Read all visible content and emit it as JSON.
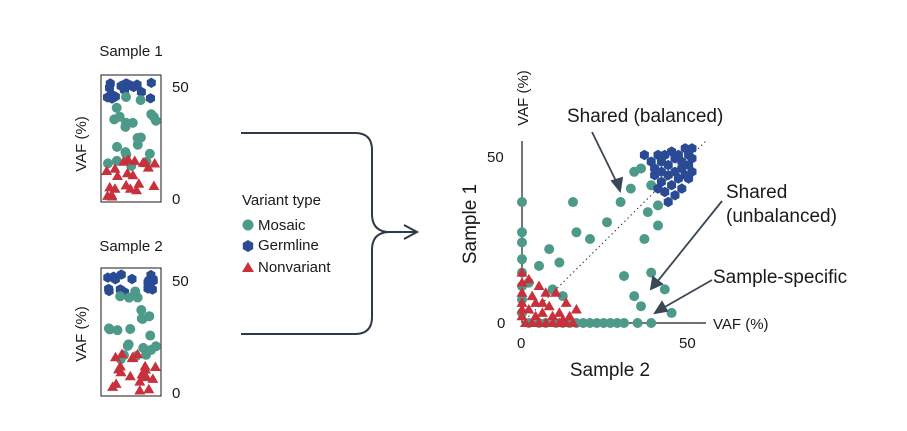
{
  "colors": {
    "mosaic": "#4e9a8a",
    "germline": "#2a4b94",
    "nonvariant": "#c8303c",
    "ink": "#1a1a1a"
  },
  "sample1": {
    "title": "Sample 1",
    "ylabel": "VAF (%)",
    "tick_top": "50",
    "tick_bottom": "0"
  },
  "sample2": {
    "title": "Sample 2",
    "ylabel": "VAF (%)",
    "tick_top": "50",
    "tick_bottom": "0"
  },
  "legend": {
    "title": "Variant type",
    "items": [
      {
        "label": "Mosaic",
        "shape": "circle",
        "type": "mosaic"
      },
      {
        "label": "Germline",
        "shape": "hexagon",
        "type": "germline"
      },
      {
        "label": "Nonvariant",
        "shape": "triangle",
        "type": "nonvariant"
      }
    ]
  },
  "scatter": {
    "ylabel": "Sample 1",
    "xlabel": "Sample 2",
    "y_axis_unit": "VAF (%)",
    "x_axis_unit": "VAF (%)",
    "y_tick_50": "50",
    "y_tick_0": "0",
    "x_tick_0": "0",
    "x_tick_50": "50"
  },
  "annotations": {
    "shared_balanced": "Shared (balanced)",
    "shared_unbalanced_line1": "Shared",
    "shared_unbalanced_line2": "(unbalanced)",
    "sample_specific": "Sample-specific"
  },
  "chart_data": {
    "type": "scatter",
    "xlabel": "Sample 2",
    "ylabel": "Sample 1",
    "xlim": [
      0,
      50
    ],
    "ylim": [
      0,
      50
    ],
    "series": [
      {
        "type": "mosaic",
        "points": [
          [
            0,
            36
          ],
          [
            0,
            27
          ],
          [
            0,
            24
          ],
          [
            0,
            19
          ],
          [
            0,
            15
          ],
          [
            0,
            11
          ],
          [
            0,
            7
          ],
          [
            0,
            3
          ],
          [
            8,
            22
          ],
          [
            5,
            17
          ],
          [
            2,
            12
          ],
          [
            11,
            18
          ],
          [
            9,
            10
          ],
          [
            16,
            27
          ],
          [
            12,
            8
          ],
          [
            15,
            36
          ],
          [
            20,
            25
          ],
          [
            25,
            30
          ],
          [
            29,
            36
          ],
          [
            30,
            14
          ],
          [
            32,
            40
          ],
          [
            35,
            46
          ],
          [
            36,
            25
          ],
          [
            40,
            29
          ],
          [
            38,
            41
          ],
          [
            33,
            45
          ],
          [
            37,
            33
          ],
          [
            40,
            35
          ],
          [
            33,
            8
          ],
          [
            42,
            10
          ],
          [
            38,
            15
          ],
          [
            35,
            5
          ],
          [
            2,
            0
          ],
          [
            5,
            0
          ],
          [
            7,
            0
          ],
          [
            10,
            0
          ],
          [
            12,
            0
          ],
          [
            14,
            0
          ],
          [
            16,
            0
          ],
          [
            18,
            0
          ],
          [
            20,
            0
          ],
          [
            22,
            0
          ],
          [
            24,
            0
          ],
          [
            26,
            0
          ],
          [
            28,
            0
          ],
          [
            30,
            0
          ],
          [
            34,
            0
          ],
          [
            38,
            0
          ],
          [
            44,
            3
          ]
        ]
      },
      {
        "type": "germline",
        "points": [
          [
            39,
            46
          ],
          [
            41,
            48
          ],
          [
            43,
            47
          ],
          [
            45,
            49
          ],
          [
            47,
            48
          ],
          [
            49,
            50
          ],
          [
            40,
            50
          ],
          [
            42,
            50
          ],
          [
            44,
            51
          ],
          [
            46,
            50
          ],
          [
            48,
            52
          ],
          [
            50,
            49
          ],
          [
            39,
            44
          ],
          [
            41,
            42
          ],
          [
            43,
            44
          ],
          [
            45,
            45
          ],
          [
            47,
            46
          ],
          [
            49,
            47
          ],
          [
            40,
            40
          ],
          [
            42,
            39
          ],
          [
            44,
            41
          ],
          [
            46,
            43
          ],
          [
            48,
            44
          ],
          [
            50,
            45
          ],
          [
            43,
            36
          ],
          [
            45,
            38
          ],
          [
            47,
            40
          ],
          [
            41,
            45
          ],
          [
            49,
            43
          ],
          [
            36,
            50
          ],
          [
            38,
            48
          ],
          [
            50,
            52
          ]
        ]
      },
      {
        "type": "nonvariant",
        "points": [
          [
            0,
            15
          ],
          [
            0,
            12
          ],
          [
            0,
            9
          ],
          [
            0,
            6
          ],
          [
            0,
            4
          ],
          [
            0,
            2
          ],
          [
            1,
            0
          ],
          [
            2,
            4
          ],
          [
            3,
            8
          ],
          [
            4,
            2
          ],
          [
            5,
            11
          ],
          [
            6,
            6
          ],
          [
            6,
            3
          ],
          [
            7,
            0
          ],
          [
            8,
            5
          ],
          [
            9,
            2
          ],
          [
            10,
            9
          ],
          [
            11,
            3
          ],
          [
            12,
            1
          ],
          [
            13,
            6
          ],
          [
            14,
            2
          ],
          [
            15,
            0
          ],
          [
            2,
            13
          ],
          [
            4,
            6
          ],
          [
            7,
            9
          ],
          [
            16,
            4
          ],
          [
            3,
            0
          ],
          [
            5,
            0
          ],
          [
            9,
            0
          ],
          [
            11,
            0
          ],
          [
            13,
            0
          ]
        ]
      }
    ],
    "diagonal": "dotted y = x line from origin to top-right"
  }
}
